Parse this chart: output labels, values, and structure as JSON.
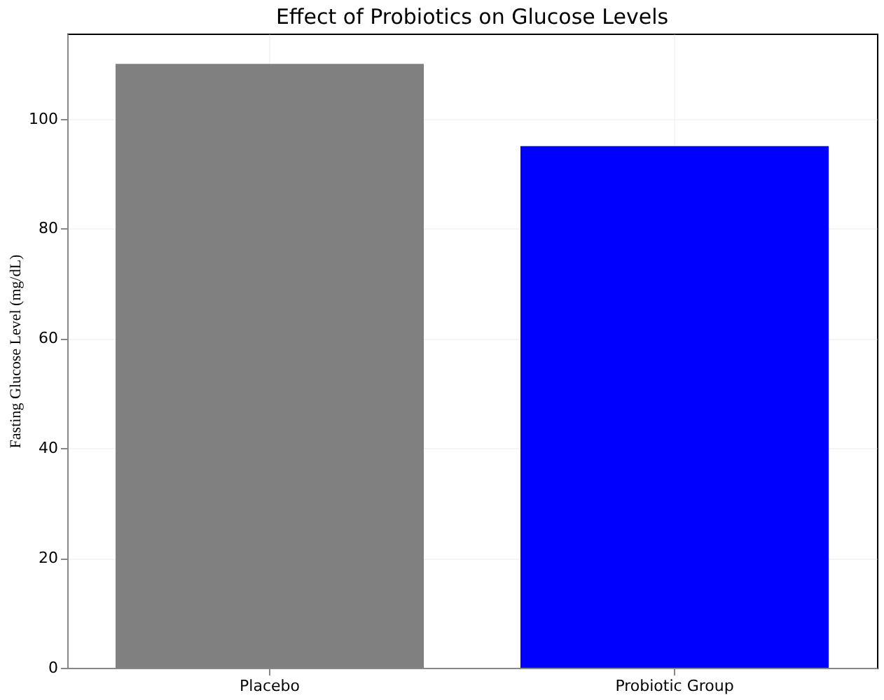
{
  "chart_data": {
    "type": "bar",
    "title": "Effect of Probiotics on Glucose Levels",
    "ylabel": "Fasting Glucose Level (mg/dL)",
    "categories": [
      "Placebo",
      "Probiotic Group"
    ],
    "values": [
      110,
      95
    ],
    "colors": [
      "#808080",
      "#0000ff"
    ],
    "ylim": [
      0,
      115.5
    ],
    "yticks": [
      0,
      20,
      40,
      60,
      80,
      100
    ],
    "grid": true
  }
}
